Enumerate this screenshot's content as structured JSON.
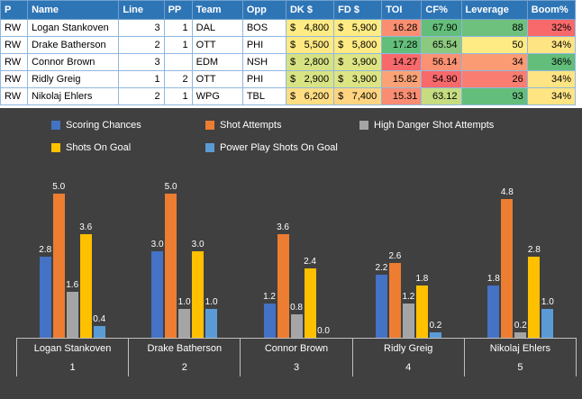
{
  "table": {
    "headers": [
      "P",
      "Name",
      "Line",
      "PP",
      "Team",
      "Opp",
      "DK $",
      "FD $",
      "TOI",
      "CF%",
      "Leverage",
      "Boom%"
    ],
    "currency_symbol": "$",
    "header_bg": "#2E75B6",
    "rows": [
      {
        "p": "RW",
        "name": "Logan Stankoven",
        "line": "3",
        "pp": "1",
        "team": "DAL",
        "opp": "BOS",
        "dk": "4,800",
        "fd": "5,900",
        "toi": "16.28",
        "cf": "67.90",
        "lev": "88",
        "boom": "32%",
        "fills": {
          "dk": "#FFEB84",
          "fd": "#FFEB84",
          "toi": "#FA8E71",
          "cf": "#63BE7B",
          "lev": "#6EC17C",
          "boom": "#F8696B"
        }
      },
      {
        "p": "RW",
        "name": "Drake Batherson",
        "line": "2",
        "pp": "1",
        "team": "OTT",
        "opp": "PHI",
        "dk": "5,500",
        "fd": "5,800",
        "toi": "17.28",
        "cf": "65.54",
        "lev": "50",
        "boom": "34%",
        "fills": {
          "dk": "#FFE983",
          "fd": "#FFEA84",
          "toi": "#63BE7B",
          "cf": "#8CC97E",
          "lev": "#FFEB84",
          "boom": "#FFE483"
        }
      },
      {
        "p": "RW",
        "name": "Connor Brown",
        "line": "3",
        "pp": "",
        "team": "EDM",
        "opp": "NSH",
        "dk": "2,800",
        "fd": "3,900",
        "toi": "14.27",
        "cf": "56.14",
        "lev": "34",
        "boom": "36%",
        "fills": {
          "dk": "#D6E282",
          "fd": "#DDE483",
          "toi": "#F8696B",
          "cf": "#FA9173",
          "lev": "#FB9B74",
          "boom": "#63BE7B"
        }
      },
      {
        "p": "RW",
        "name": "Ridly Greig",
        "line": "1",
        "pp": "2",
        "team": "OTT",
        "opp": "PHI",
        "dk": "2,900",
        "fd": "3,900",
        "toi": "15.82",
        "cf": "54.90",
        "lev": "26",
        "boom": "34%",
        "fills": {
          "dk": "#D8E383",
          "fd": "#DDE483",
          "toi": "#FBA376",
          "cf": "#F8696B",
          "lev": "#F97D70",
          "boom": "#FFE483"
        }
      },
      {
        "p": "RW",
        "name": "Nikolaj Ehlers",
        "line": "2",
        "pp": "1",
        "team": "WPG",
        "opp": "TBL",
        "dk": "6,200",
        "fd": "7,400",
        "toi": "15.31",
        "cf": "63.12",
        "lev": "93",
        "boom": "34%",
        "fills": {
          "dk": "#FFDD82",
          "fd": "#FFD480",
          "toi": "#F98C72",
          "cf": "#C5DC81",
          "lev": "#63BE7B",
          "boom": "#FFE483"
        }
      }
    ]
  },
  "chart_data": {
    "type": "bar",
    "categories": [
      "Logan Stankoven",
      "Drake Batherson",
      "Connor Brown",
      "Ridly Greig",
      "Nikolaj Ehlers"
    ],
    "category_numbers": [
      "1",
      "2",
      "3",
      "4",
      "5"
    ],
    "series": [
      {
        "name": "Scoring Chances",
        "color": "#4472C4",
        "values": [
          2.8,
          3.0,
          1.2,
          2.2,
          1.8
        ]
      },
      {
        "name": "Shot Attempts",
        "color": "#ED7D31",
        "values": [
          5.0,
          5.0,
          3.6,
          2.6,
          4.8
        ]
      },
      {
        "name": "High Danger Shot Attempts",
        "color": "#A5A5A5",
        "values": [
          1.6,
          1.0,
          0.8,
          1.2,
          0.2
        ]
      },
      {
        "name": "Shots On Goal",
        "color": "#FFC000",
        "values": [
          3.6,
          3.0,
          2.4,
          1.8,
          2.8
        ]
      },
      {
        "name": "Power Play Shots On Goal",
        "color": "#5B9BD5",
        "values": [
          0.4,
          1.0,
          0.0,
          0.2,
          1.0
        ]
      }
    ],
    "ylim": [
      0,
      5.5
    ],
    "data_labels": true,
    "legend_position": "top",
    "grid": false,
    "background": "#404040",
    "text_color": "#FFFFFF",
    "axis_line_color": "#BFBFBF"
  }
}
